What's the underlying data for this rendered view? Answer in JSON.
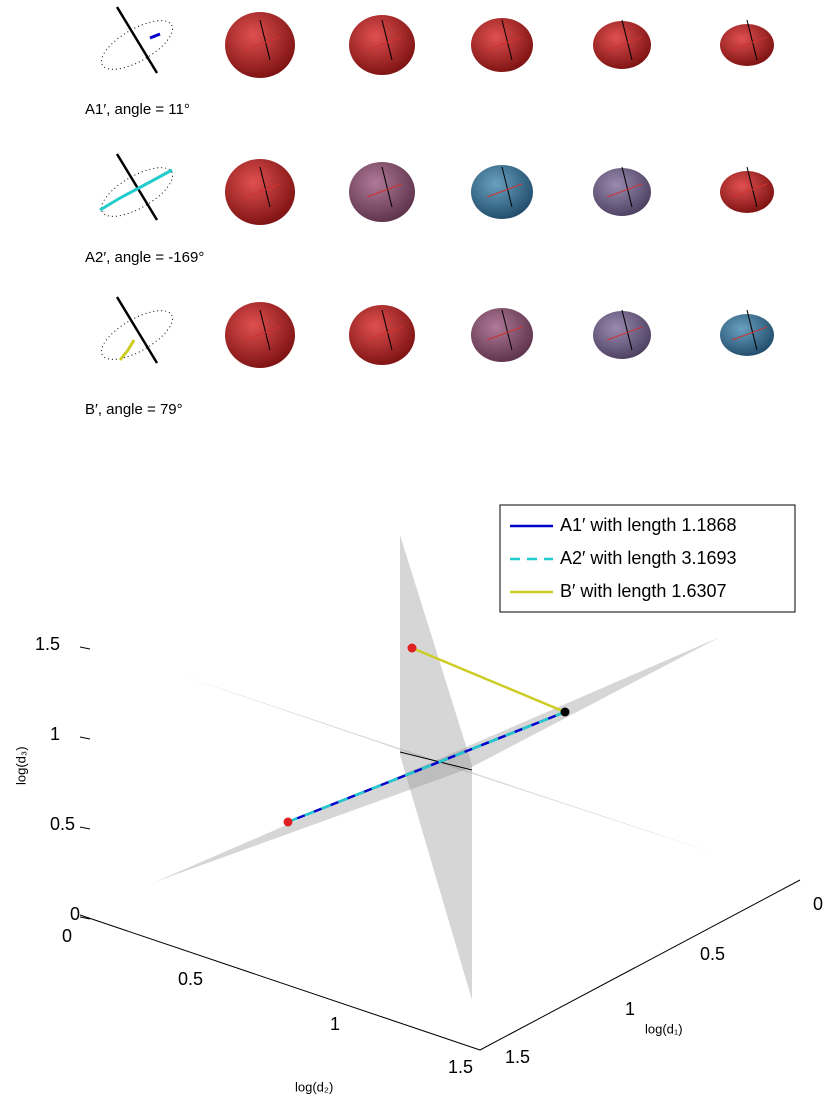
{
  "rows": [
    {
      "label": "A1′, angle = 11°"
    },
    {
      "label": "A2′, angle = -169°"
    },
    {
      "label": "B′, angle = 79°"
    }
  ],
  "plot": {
    "legend": [
      {
        "label": "A1′ with length 1.1868",
        "color": "#0000cc"
      },
      {
        "label": "A2′ with length 3.1693",
        "color": "#22cccc"
      },
      {
        "label": "B′ with length 1.6307",
        "color": "#cccc22"
      }
    ],
    "z_axis": {
      "label": "log(d₃)",
      "ticks": [
        "0",
        "0.5",
        "1",
        "1.5"
      ]
    },
    "x_axis": {
      "label": "log(d₂)",
      "ticks": [
        "0",
        "0.5",
        "1",
        "1.5"
      ]
    },
    "y_axis": {
      "label": "log(d₁)",
      "ticks": [
        "0",
        "0.5",
        "1",
        "1.5"
      ]
    }
  }
}
